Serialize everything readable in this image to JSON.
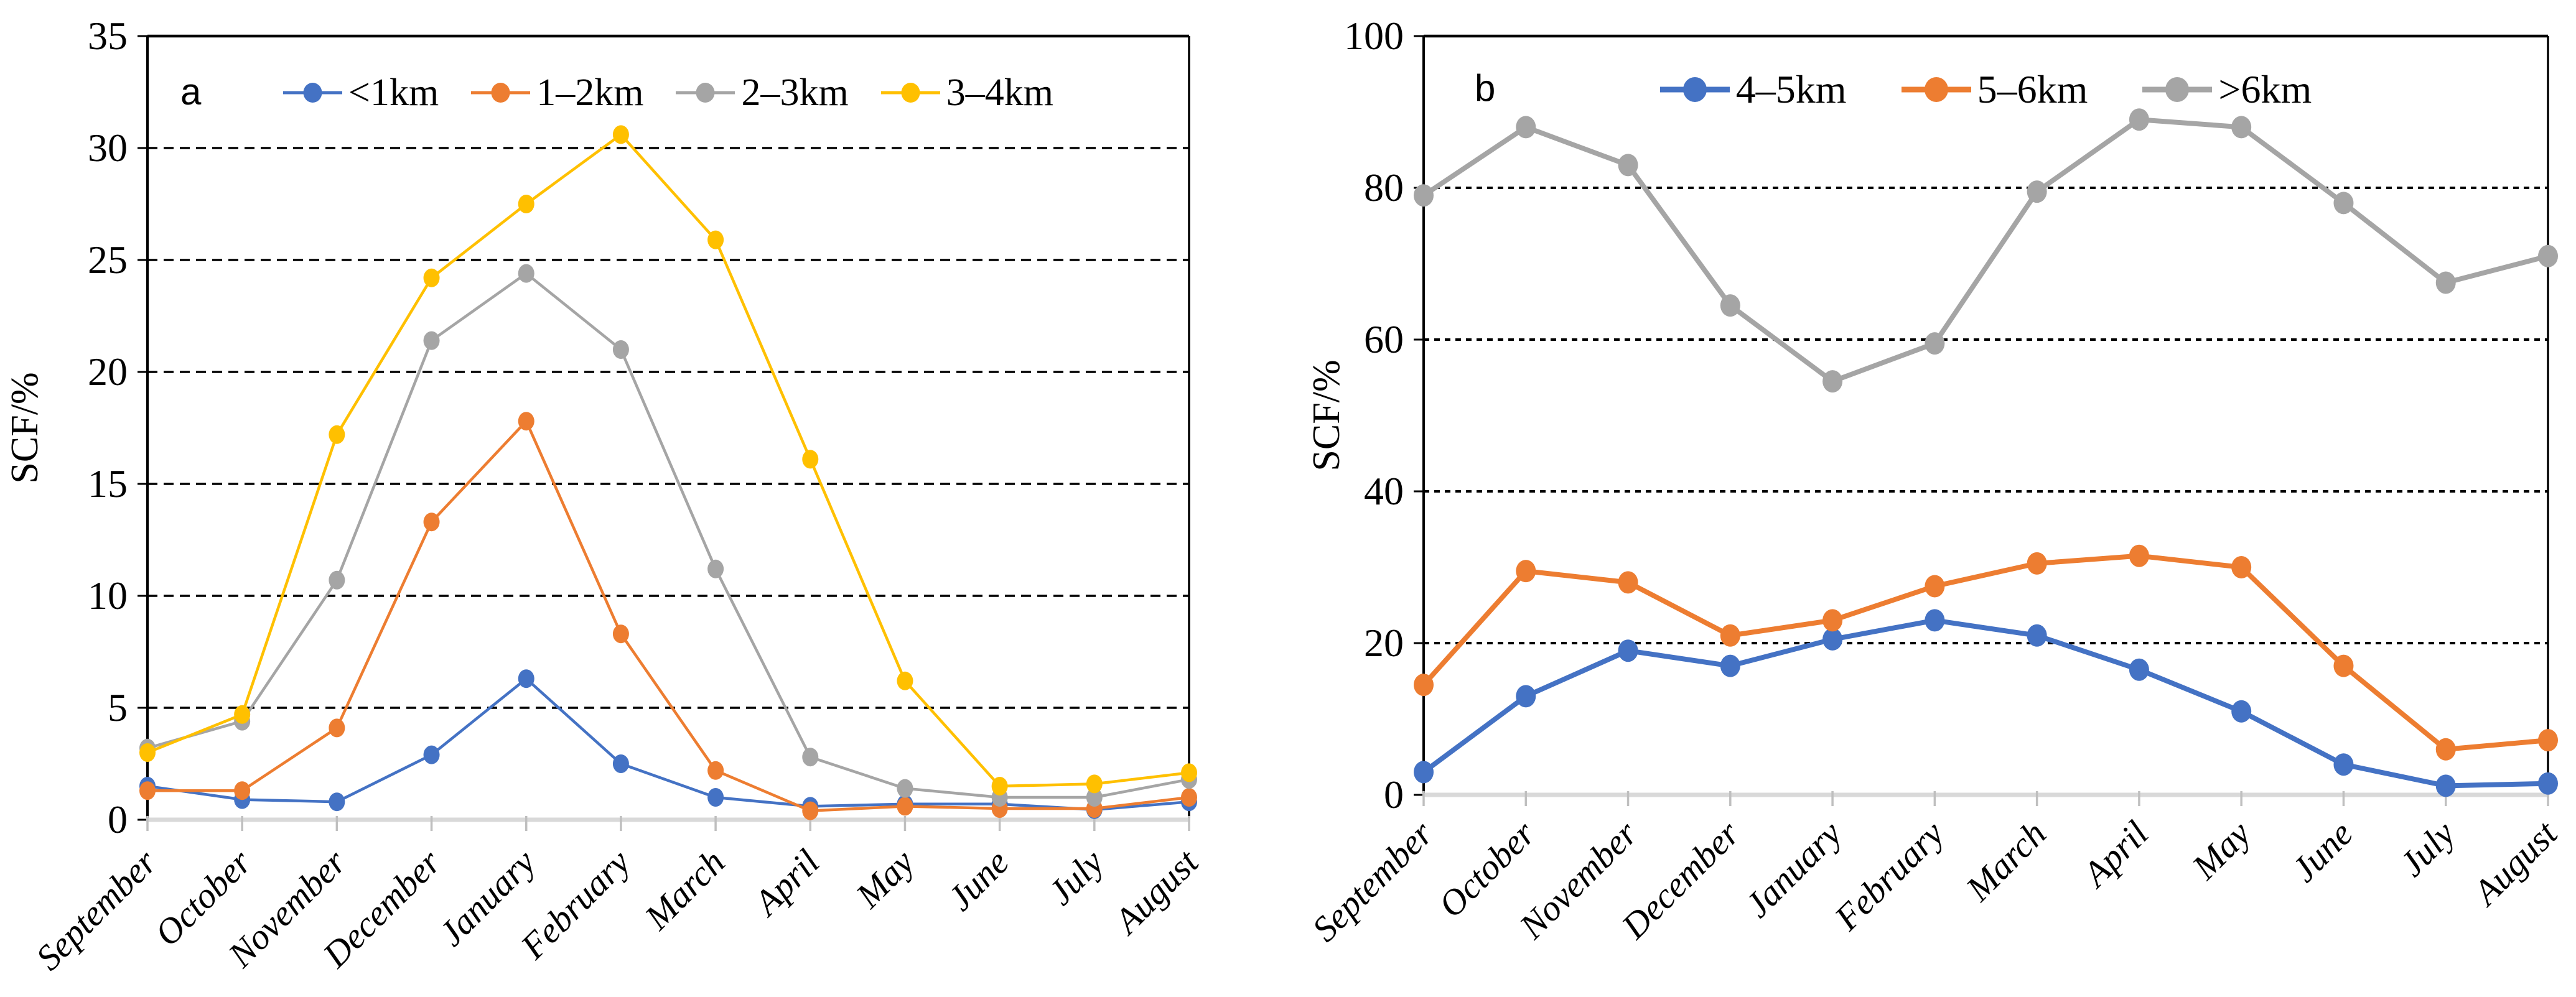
{
  "figure": {
    "background": "#ffffff",
    "months": [
      "September",
      "October",
      "November",
      "December",
      "January",
      "February",
      "March",
      "April",
      "May",
      "June",
      "July",
      "August"
    ],
    "colors": {
      "blue": "#4472C4",
      "orange": "#ED7D31",
      "gray": "#A5A5A5",
      "yellow": "#FFC000",
      "baseline_gray": "#D9D9D9",
      "tick_gray": "#BFBFBF",
      "axis_black": "#000000"
    }
  },
  "chart_data": [
    {
      "type": "line",
      "panel_label": "a",
      "ylabel": "SCF/%",
      "ylim": [
        0,
        35
      ],
      "yticks": [
        0,
        5,
        10,
        15,
        20,
        25,
        30,
        35
      ],
      "grid": "dashed-horizontal",
      "legend_position": "top-center",
      "categories": [
        "September",
        "October",
        "November",
        "December",
        "January",
        "February",
        "March",
        "April",
        "May",
        "June",
        "July",
        "August"
      ],
      "series": [
        {
          "name": "<1km",
          "color": "#4472C4",
          "values": [
            1.5,
            0.9,
            0.8,
            2.9,
            6.3,
            2.5,
            1.0,
            0.6,
            0.7,
            0.7,
            0.45,
            0.8
          ]
        },
        {
          "name": "1–2km",
          "color": "#ED7D31",
          "values": [
            1.3,
            1.3,
            4.1,
            13.3,
            17.8,
            8.3,
            2.2,
            0.4,
            0.6,
            0.5,
            0.5,
            1.0
          ]
        },
        {
          "name": "2–3km",
          "color": "#A5A5A5",
          "values": [
            3.2,
            4.4,
            10.7,
            21.4,
            24.4,
            21.0,
            11.2,
            2.8,
            1.4,
            1.0,
            1.0,
            1.8
          ]
        },
        {
          "name": "3–4km",
          "color": "#FFC000",
          "values": [
            3.0,
            4.7,
            17.2,
            24.2,
            27.5,
            30.6,
            25.9,
            16.1,
            6.2,
            1.5,
            1.6,
            2.1
          ]
        }
      ]
    },
    {
      "type": "line",
      "panel_label": "b",
      "ylabel": "SCF/%",
      "ylim": [
        0,
        100
      ],
      "yticks": [
        0,
        20,
        40,
        60,
        80,
        100
      ],
      "grid": "dashed-horizontal",
      "legend_position": "top-center",
      "categories": [
        "September",
        "October",
        "November",
        "December",
        "January",
        "February",
        "March",
        "April",
        "May",
        "June",
        "July",
        "August"
      ],
      "series": [
        {
          "name": "4–5km",
          "color": "#4472C4",
          "values": [
            3,
            13,
            19,
            17,
            20.5,
            23,
            21,
            16.5,
            11,
            4,
            1.2,
            1.5
          ]
        },
        {
          "name": "5–6km",
          "color": "#ED7D31",
          "values": [
            14.5,
            29.5,
            28,
            21,
            23,
            27.5,
            30.5,
            31.5,
            30,
            17,
            6,
            7.2
          ]
        },
        {
          "name": ">6km",
          "color": "#A5A5A5",
          "values": [
            79,
            88,
            83,
            64.5,
            54.5,
            59.5,
            79.5,
            89,
            88,
            78,
            67.5,
            71
          ]
        }
      ]
    }
  ]
}
